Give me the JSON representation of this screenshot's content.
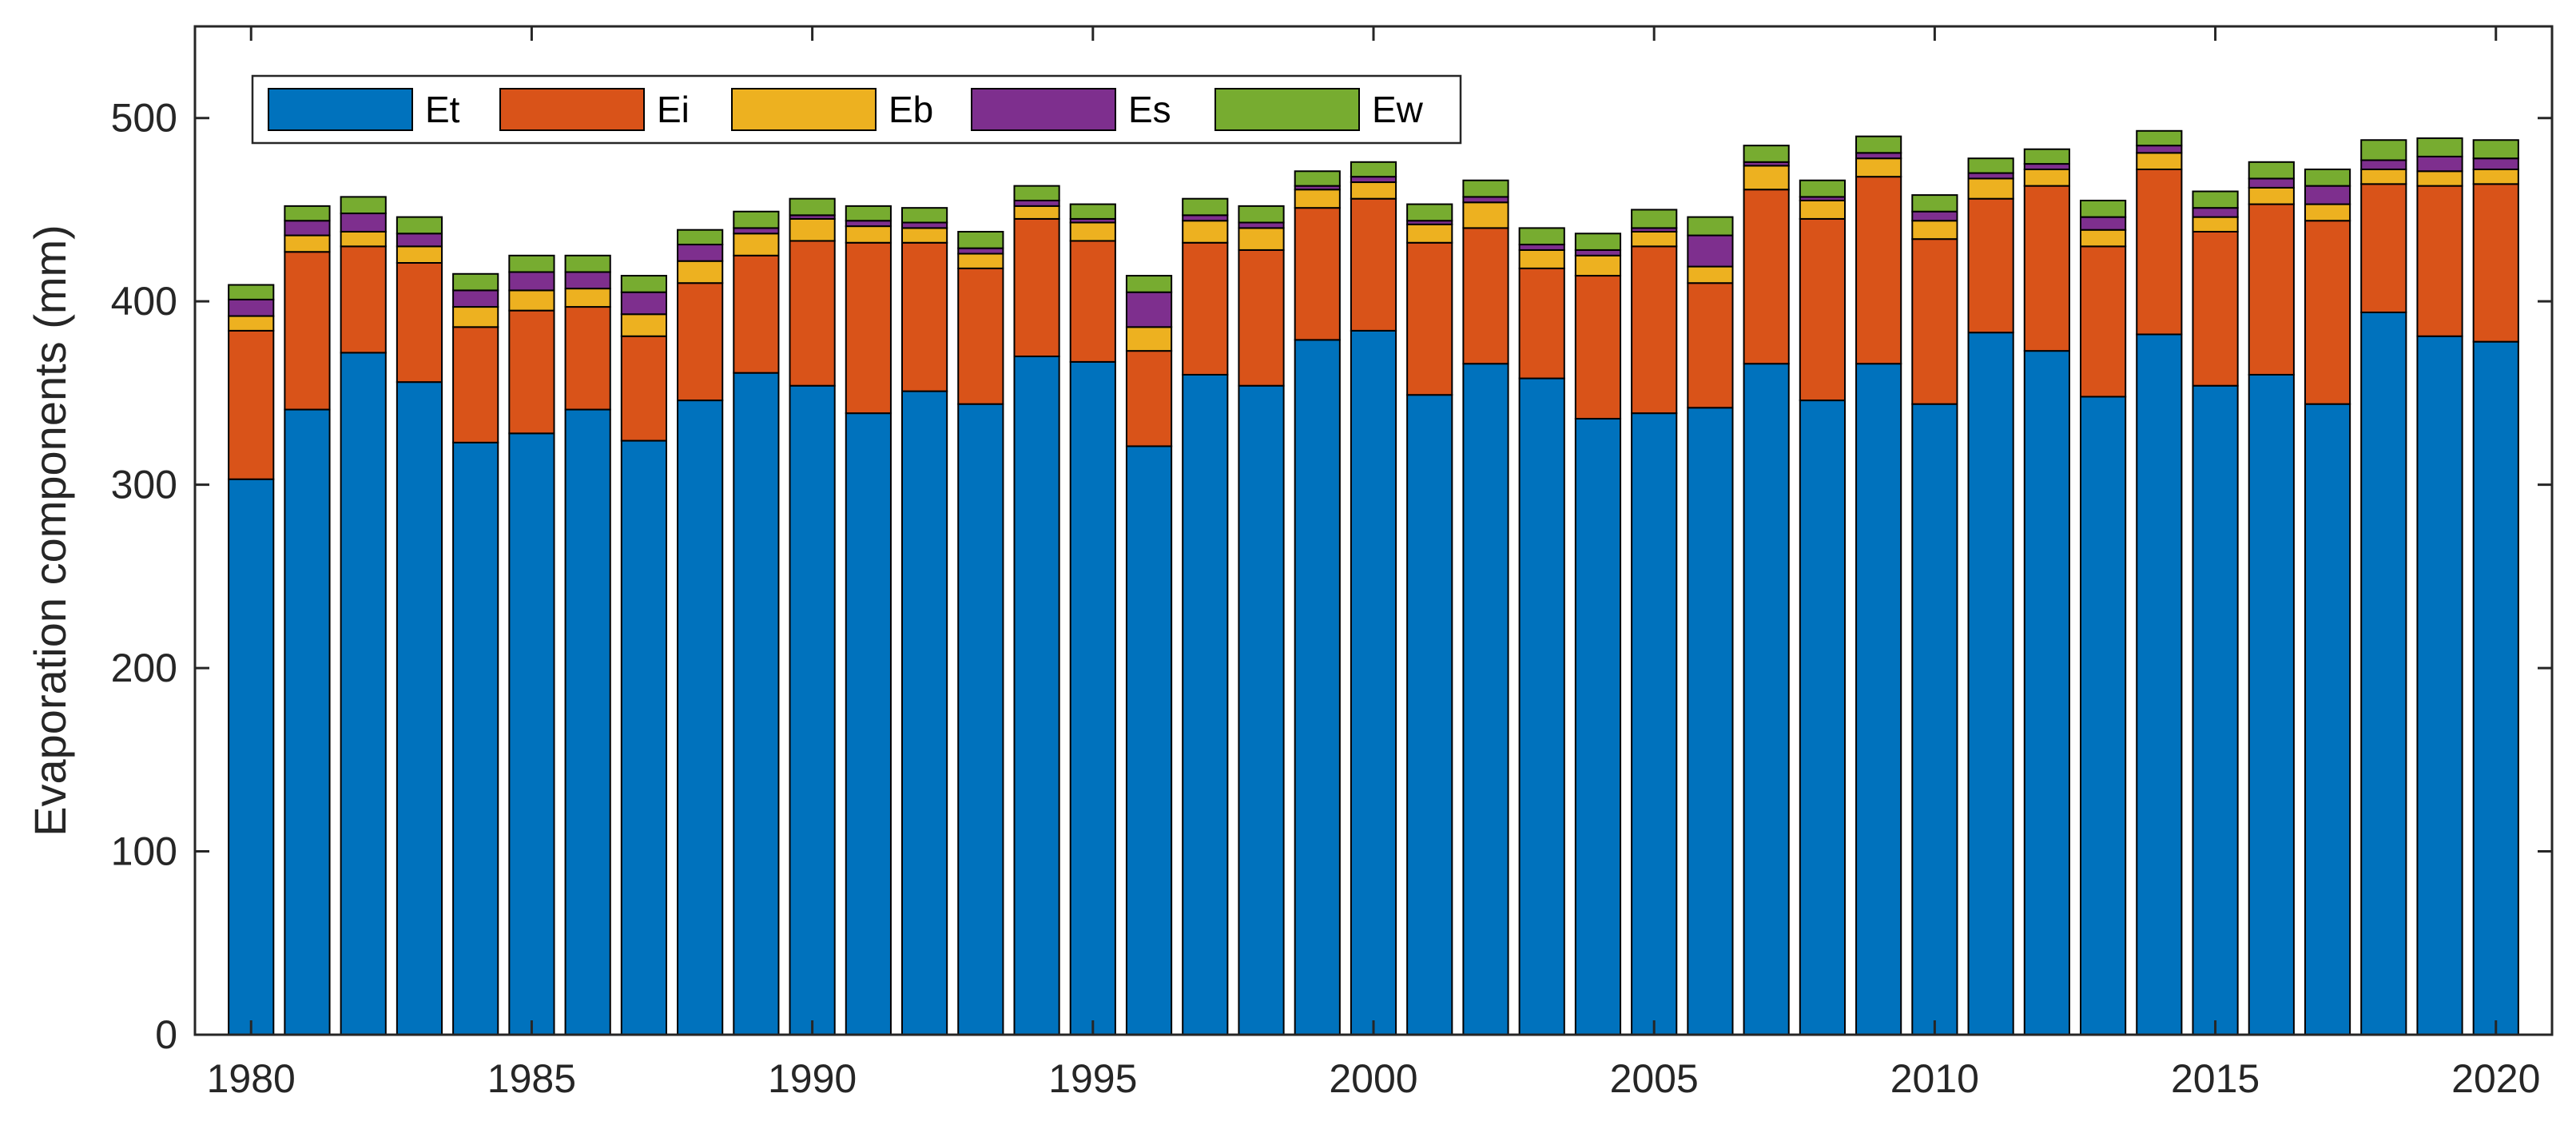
{
  "chart_data": {
    "type": "bar",
    "stacked": true,
    "title": "",
    "xlabel": "",
    "ylabel": "Evaporation components (mm)",
    "ylim": [
      0,
      550
    ],
    "xlim": [
      1979,
      2021
    ],
    "yticks": [
      0,
      100,
      200,
      300,
      400,
      500
    ],
    "xticks": [
      1980,
      1985,
      1990,
      1995,
      2000,
      2005,
      2010,
      2015,
      2020
    ],
    "legend_position": "top-left",
    "categories": [
      1980,
      1981,
      1982,
      1983,
      1984,
      1985,
      1986,
      1987,
      1988,
      1989,
      1990,
      1991,
      1992,
      1993,
      1994,
      1995,
      1996,
      1997,
      1998,
      1999,
      2000,
      2001,
      2002,
      2003,
      2004,
      2005,
      2006,
      2007,
      2008,
      2009,
      2010,
      2011,
      2012,
      2013,
      2014,
      2015,
      2016,
      2017,
      2018,
      2019,
      2020
    ],
    "series": [
      {
        "name": "Et",
        "color": "#0072BD",
        "values": [
          303,
          341,
          372,
          356,
          323,
          328,
          341,
          324,
          346,
          361,
          354,
          339,
          351,
          344,
          370,
          367,
          321,
          360,
          354,
          379,
          384,
          349,
          366,
          358,
          336,
          339,
          342,
          366,
          346,
          366,
          344,
          383,
          373,
          348,
          382,
          354,
          360,
          344,
          394,
          381,
          378
        ]
      },
      {
        "name": "Ei",
        "color": "#D95319",
        "values": [
          81,
          86,
          58,
          65,
          63,
          67,
          56,
          57,
          64,
          64,
          79,
          93,
          81,
          74,
          75,
          66,
          52,
          72,
          74,
          72,
          72,
          83,
          74,
          60,
          78,
          91,
          68,
          95,
          99,
          102,
          90,
          73,
          90,
          82,
          90,
          84,
          93,
          100,
          70,
          82,
          86
        ]
      },
      {
        "name": "Eb",
        "color": "#EDB120",
        "values": [
          8,
          9,
          8,
          9,
          11,
          11,
          10,
          12,
          12,
          12,
          12,
          9,
          8,
          8,
          7,
          10,
          13,
          12,
          12,
          10,
          9,
          10,
          14,
          10,
          11,
          8,
          9,
          13,
          10,
          10,
          10,
          11,
          9,
          9,
          9,
          8,
          9,
          9,
          8,
          8,
          8
        ]
      },
      {
        "name": "Es",
        "color": "#7E2F8E",
        "values": [
          9,
          8,
          10,
          7,
          9,
          10,
          9,
          12,
          9,
          3,
          2,
          3,
          3,
          3,
          3,
          2,
          19,
          3,
          3,
          2,
          3,
          2,
          3,
          3,
          3,
          2,
          17,
          2,
          2,
          3,
          5,
          3,
          3,
          7,
          4,
          5,
          5,
          10,
          5,
          8,
          6
        ]
      },
      {
        "name": "Ew",
        "color": "#77AC30",
        "values": [
          8,
          8,
          9,
          9,
          9,
          9,
          9,
          9,
          8,
          9,
          9,
          8,
          8,
          9,
          8,
          8,
          9,
          9,
          9,
          8,
          8,
          9,
          9,
          9,
          9,
          10,
          10,
          9,
          9,
          9,
          9,
          8,
          8,
          9,
          8,
          9,
          9,
          9,
          11,
          10,
          10
        ]
      }
    ]
  }
}
